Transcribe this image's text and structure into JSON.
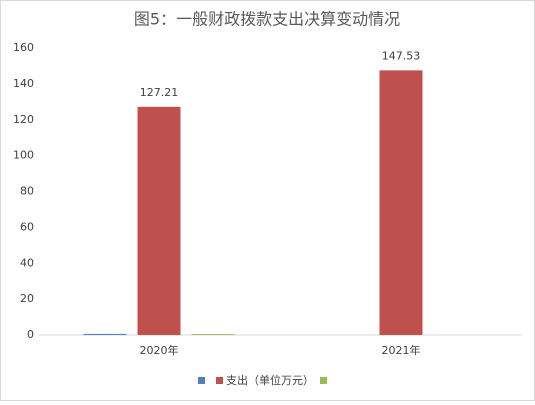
{
  "chart_data": {
    "type": "bar",
    "title": "图5：一般财政拨款支出决算变动情况",
    "categories": [
      "2020年",
      "2021年"
    ],
    "series": [
      {
        "color": "#4f81bd",
        "values": [
          0.6,
          0
        ]
      },
      {
        "name": "支出（单位万元）",
        "color": "#c0504d",
        "values": [
          127.21,
          147.53
        ]
      },
      {
        "color": "#9bbb59",
        "values": [
          0.5,
          0
        ]
      }
    ],
    "ylim": [
      0,
      160
    ],
    "yticks": [
      0,
      20,
      40,
      60,
      80,
      100,
      120,
      140,
      160
    ],
    "grid": false,
    "data_labels_series": [
      1
    ],
    "legend": "bottom"
  }
}
